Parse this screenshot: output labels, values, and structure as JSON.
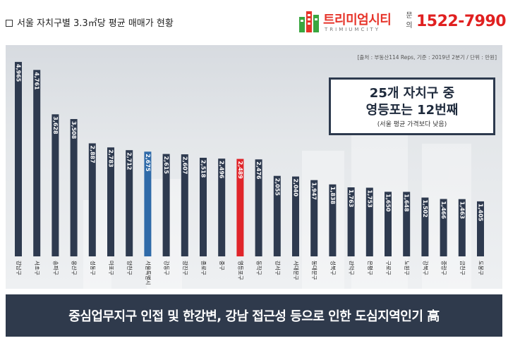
{
  "header": {
    "title": "서울 자치구별 3.3㎡당 평균 매매가 현황",
    "logo_name": "트리미엄시티",
    "logo_sub": "TRIMIUMCITY",
    "inquiry_label": "문의",
    "phone": "1522-7990"
  },
  "source_note": "[출처 : 부동산114 Reps, 기준 : 2019년 2분기 / 단위 : 만원]",
  "callout": {
    "line1": "25개 자치구 중",
    "line2": "영등포는 12번째",
    "note": "(서울 평균 가격보다 낮음)"
  },
  "banner": "중심업무지구 인접 및 한강변, 강남 접근성 등으로 인한 도심지역인기 高",
  "colors": {
    "bar_default": "#2e3a4f",
    "bar_seoul_avg": "#2f6aa8",
    "bar_highlight": "#e0252a",
    "phone": "#e02020",
    "banner_bg": "#2f3a4c"
  },
  "chart_data": {
    "type": "bar",
    "categories": [
      "강남구",
      "서초구",
      "송파구",
      "용산구",
      "성동구",
      "마포구",
      "양천구",
      "서울특별시",
      "강동구",
      "광진구",
      "종로구",
      "중구",
      "영등포구",
      "동작구",
      "강서구",
      "서대문구",
      "동대문구",
      "성북구",
      "관악구",
      "은평구",
      "구로구",
      "노원구",
      "강북구",
      "중랑구",
      "금천구",
      "도봉구"
    ],
    "values": [
      4965,
      4761,
      3628,
      3508,
      2887,
      2783,
      2712,
      2675,
      2615,
      2607,
      2518,
      2496,
      2489,
      2476,
      2055,
      2040,
      1947,
      1838,
      1763,
      1753,
      1650,
      1648,
      1502,
      1466,
      1463,
      1405
    ],
    "value_labels": [
      "4,965",
      "4,761",
      "3,628",
      "3,508",
      "2,887",
      "2,783",
      "2,712",
      "2,675",
      "2,615",
      "2,607",
      "2,518",
      "2,496",
      "2,489",
      "2,476",
      "2,055",
      "2,040",
      "1,947",
      "1,838",
      "1,763",
      "1,753",
      "1,650",
      "1,648",
      "1,502",
      "1,466",
      "1,463",
      "1,405"
    ],
    "highlight_index": 12,
    "average_index": 7,
    "ylim": [
      0,
      5000
    ],
    "unit": "만원",
    "grid": false,
    "legend": "none"
  }
}
